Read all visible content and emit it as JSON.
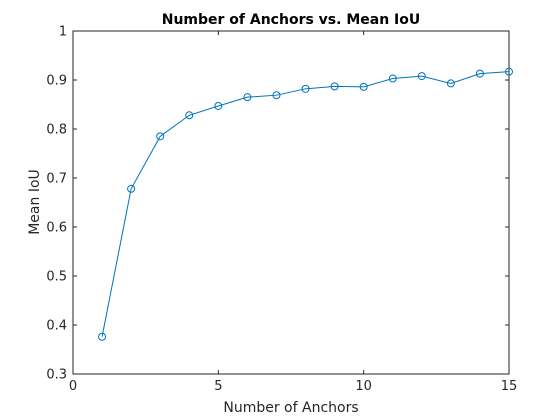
{
  "chart_data": {
    "type": "line",
    "title": "Number of Anchors vs. Mean IoU",
    "xlabel": "Number of Anchors",
    "ylabel": "Mean IoU",
    "xlim": [
      0,
      15
    ],
    "ylim": [
      0.3,
      1
    ],
    "xticks": [
      0,
      5,
      10,
      15
    ],
    "yticks": [
      0.3,
      0.4,
      0.5,
      0.6,
      0.7,
      0.8,
      0.9,
      1
    ],
    "ytick_labels": [
      "0.3",
      "0.4",
      "0.5",
      "0.6",
      "0.7",
      "0.8",
      "0.9",
      "1"
    ],
    "grid": false,
    "marker": "circle",
    "series_color": "#0072bd",
    "x": [
      1,
      2,
      3,
      4,
      5,
      6,
      7,
      8,
      9,
      10,
      11,
      12,
      13,
      14,
      15
    ],
    "series": [
      {
        "values": [
          0.376,
          0.678,
          0.785,
          0.828,
          0.847,
          0.865,
          0.869,
          0.882,
          0.887,
          0.886,
          0.903,
          0.908,
          0.893,
          0.913,
          0.917
        ]
      }
    ]
  }
}
